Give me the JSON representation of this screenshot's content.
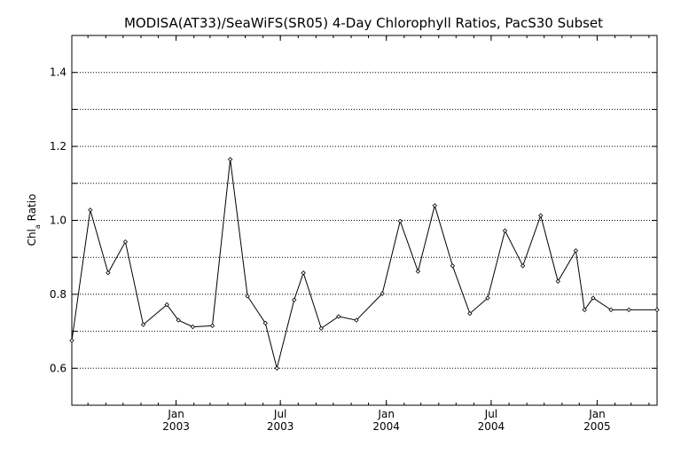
{
  "chart_data": {
    "type": "line",
    "title": "MODISA(AT33)/SeaWiFS(SR05) 4-Day Chlorophyll Ratios, PacS30 Subset",
    "ylabel": "Chl_a Ratio",
    "ylabel_main": "Chl",
    "ylabel_sub": "a",
    "ylabel_rest": " Ratio",
    "xlabel": "",
    "xlim": [
      "2002-07-04",
      "2005-04-15"
    ],
    "ylim": [
      0.5,
      1.5
    ],
    "yticks": [
      0.6,
      0.8,
      1.0,
      1.2,
      1.4
    ],
    "yticks_labels": [
      "0.6",
      "0.8",
      "1.0",
      "1.2",
      "1.4"
    ],
    "ygrid": [
      0.6,
      0.7,
      0.8,
      0.9,
      1.0,
      1.1,
      1.2,
      1.3,
      1.4
    ],
    "xticks": [
      {
        "date": "2003-01-01",
        "line1": "Jan",
        "line2": "2003"
      },
      {
        "date": "2003-07-01",
        "line1": "Jul",
        "line2": "2003"
      },
      {
        "date": "2004-01-01",
        "line1": "Jan",
        "line2": "2004"
      },
      {
        "date": "2004-07-01",
        "line1": "Jul",
        "line2": "2004"
      },
      {
        "date": "2005-01-01",
        "line1": "Jan",
        "line2": "2005"
      }
    ],
    "grid": true,
    "series": [
      {
        "x": [
          "2002-07-04",
          "2002-08-05",
          "2002-09-05",
          "2002-10-05",
          "2002-11-05",
          "2002-12-16",
          "2003-01-05",
          "2003-01-30",
          "2003-03-05",
          "2003-04-05",
          "2003-05-05",
          "2003-06-05",
          "2003-06-25",
          "2003-07-25",
          "2003-08-10",
          "2003-09-10",
          "2003-10-10",
          "2003-11-10",
          "2003-12-25",
          "2004-01-25",
          "2004-02-25",
          "2004-03-25",
          "2004-04-25",
          "2004-05-25",
          "2004-06-25",
          "2004-07-25",
          "2004-08-25",
          "2004-09-25",
          "2004-10-25",
          "2004-11-25",
          "2004-12-10",
          "2004-12-25",
          "2005-01-25",
          "2005-02-25",
          "2005-04-15"
        ],
        "values": [
          0.675,
          1.028,
          0.858,
          0.942,
          0.718,
          0.772,
          0.73,
          0.712,
          0.715,
          1.165,
          0.795,
          0.722,
          0.6,
          0.785,
          0.858,
          0.708,
          0.74,
          0.73,
          0.802,
          0.998,
          0.862,
          1.04,
          0.877,
          0.748,
          0.79,
          0.972,
          0.877,
          1.013,
          0.835,
          0.918,
          0.758,
          0.79,
          0.758,
          0.758,
          0.758
        ]
      }
    ]
  }
}
